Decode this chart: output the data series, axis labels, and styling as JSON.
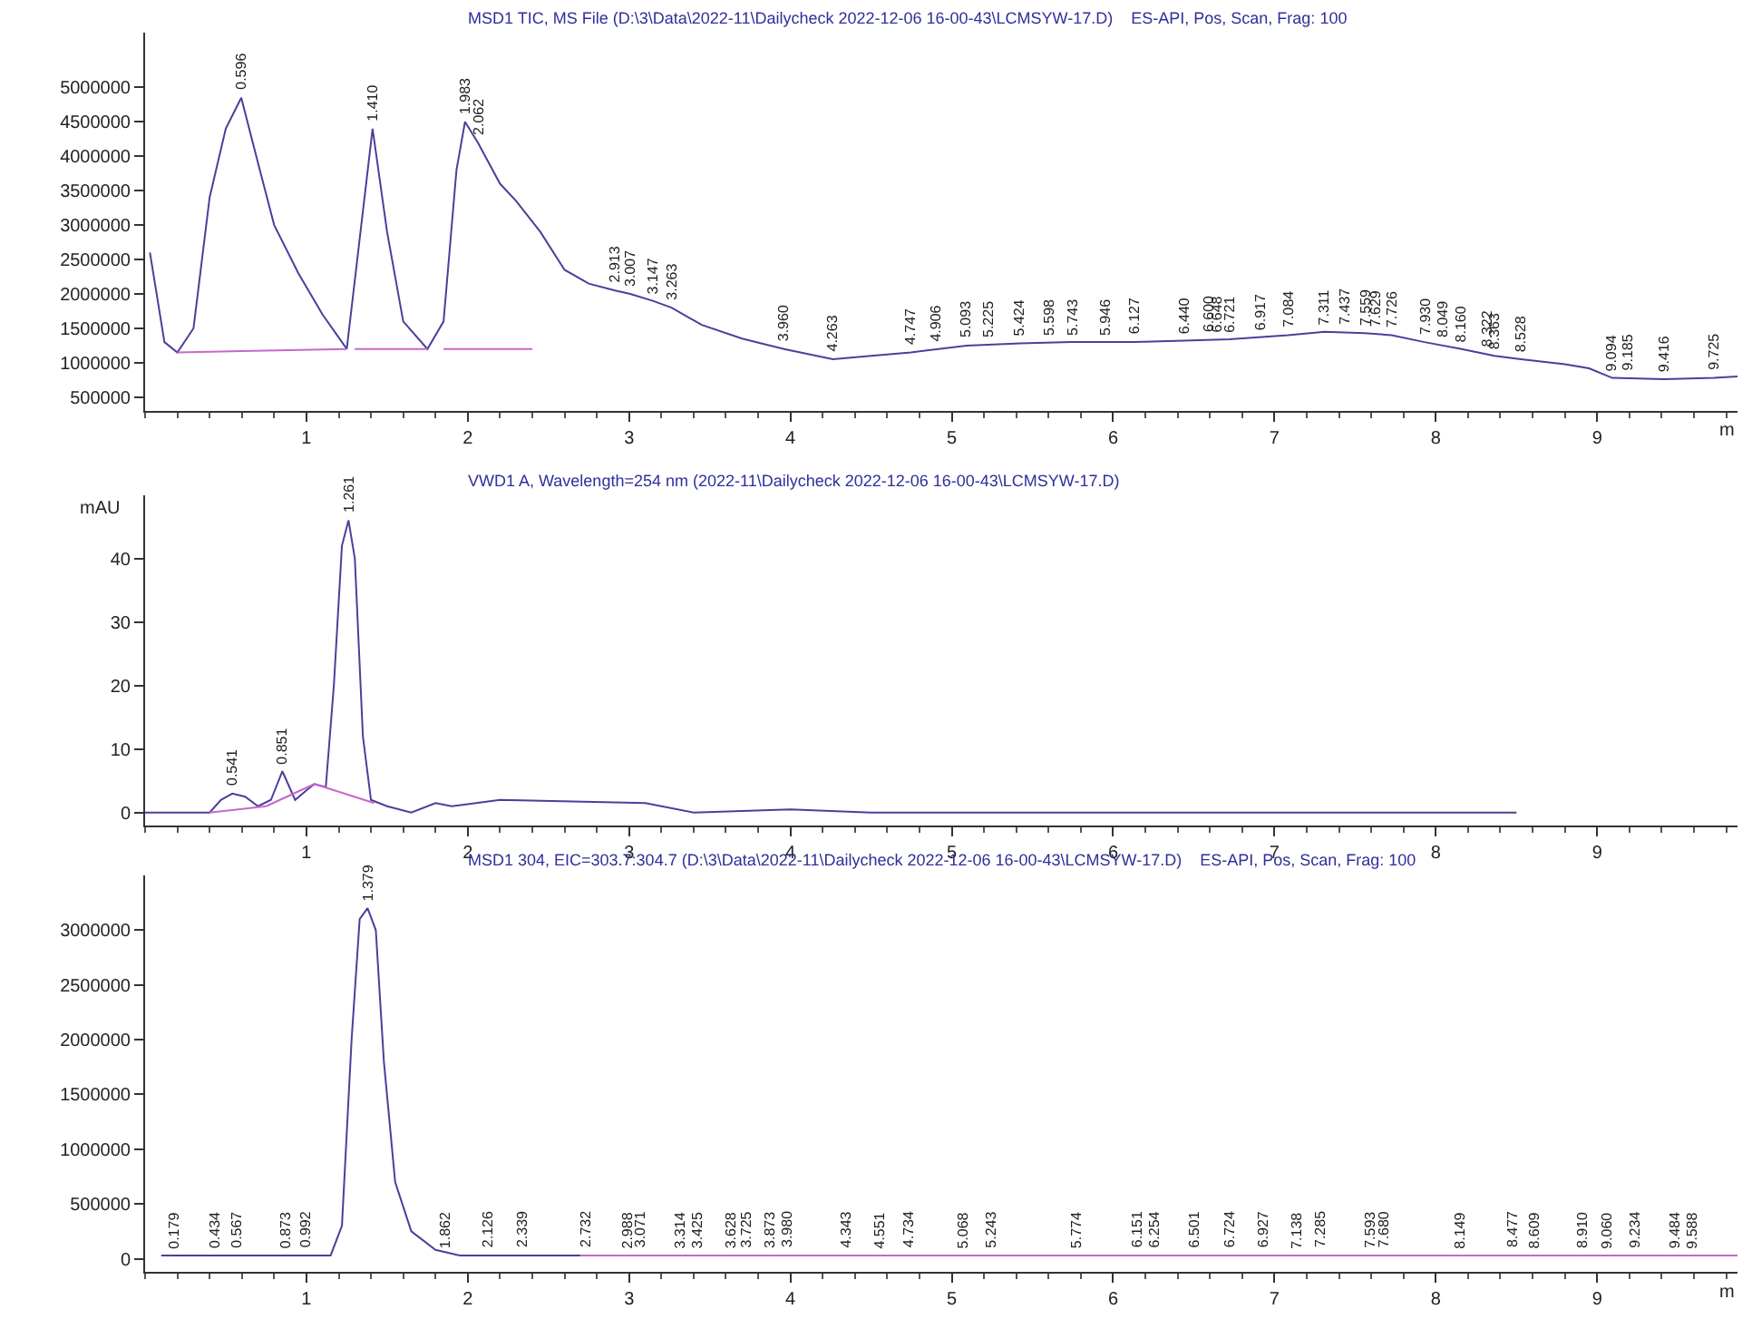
{
  "chart_data": [
    {
      "type": "line",
      "title": "MSD1 TIC, MS File (D:\\3\\Data\\2022-11\\Dailycheck 2022-12-06 16-00-43\\LCMSYW-17.D)    ES-API, Pos, Scan, Frag: 100",
      "xlabel": "m",
      "xlim": [
        0,
        9.87
      ],
      "xticks": [
        1,
        2,
        3,
        4,
        5,
        6,
        7,
        8,
        9
      ],
      "ylim": [
        300000,
        5800000
      ],
      "yticks": [
        500000,
        1000000,
        1500000,
        2000000,
        2500000,
        3000000,
        3500000,
        4000000,
        4500000,
        5000000
      ],
      "marker": "none",
      "line_style": "solid",
      "series": [
        {
          "color": "#4b3f9a",
          "x": [
            0.03,
            0.12,
            0.2,
            0.3,
            0.4,
            0.5,
            0.596,
            0.7,
            0.8,
            0.95,
            1.1,
            1.25,
            1.33,
            1.41,
            1.5,
            1.6,
            1.75,
            1.85,
            1.93,
            1.983,
            2.062,
            2.2,
            2.3,
            2.45,
            2.6,
            2.75,
            2.913,
            3.007,
            3.147,
            3.263,
            3.45,
            3.7,
            3.96,
            4.263,
            4.5,
            4.747,
            5.093,
            5.424,
            5.743,
            6.127,
            6.44,
            6.721,
            7.084,
            7.311,
            7.559,
            7.726,
            7.93,
            8.16,
            8.363,
            8.528,
            8.8,
            8.95,
            9.094,
            9.416,
            9.725,
            9.87
          ],
          "values": [
            2600000,
            1300000,
            1150000,
            1500000,
            3400000,
            4400000,
            4850000,
            3900000,
            3000000,
            2300000,
            1700000,
            1200000,
            2800000,
            4400000,
            2900000,
            1600000,
            1200000,
            1600000,
            3800000,
            4500000,
            4200000,
            3600000,
            3350000,
            2900000,
            2350000,
            2150000,
            2050000,
            2000000,
            1900000,
            1800000,
            1550000,
            1350000,
            1200000,
            1050000,
            1100000,
            1150000,
            1250000,
            1280000,
            1300000,
            1300000,
            1320000,
            1340000,
            1400000,
            1450000,
            1430000,
            1400000,
            1300000,
            1200000,
            1100000,
            1050000,
            980000,
            920000,
            780000,
            760000,
            780000,
            800000
          ]
        },
        {
          "color": "#c868c8",
          "x": [
            0.2,
            1.25,
            null,
            1.3,
            1.75,
            null,
            1.85,
            2.4
          ],
          "values": [
            1150000,
            1200000,
            null,
            1200000,
            1200000,
            null,
            1200000,
            1200000
          ]
        }
      ],
      "annotations": [
        {
          "text": "0.596",
          "x": 0.596,
          "y": 4850000
        },
        {
          "text": "1.410",
          "x": 1.41,
          "y": 4400000
        },
        {
          "text": "1.983",
          "x": 1.983,
          "y": 4500000
        },
        {
          "text": "2.062",
          "x": 2.062,
          "y": 4200000
        },
        {
          "text": "2.913",
          "x": 2.913,
          "y": 2050000
        },
        {
          "text": "3.007",
          "x": 3.007,
          "y": 2000000
        },
        {
          "text": "3.147",
          "x": 3.147,
          "y": 1900000
        },
        {
          "text": "3.263",
          "x": 3.263,
          "y": 1800000
        },
        {
          "text": "3.960",
          "x": 3.96,
          "y": 1200000
        },
        {
          "text": "4.263",
          "x": 4.263,
          "y": 1050000
        },
        {
          "text": "4.747",
          "x": 4.747,
          "y": 1150000
        },
        {
          "text": "4.906",
          "x": 4.906,
          "y": 1200000
        },
        {
          "text": "5.093",
          "x": 5.093,
          "y": 1250000
        },
        {
          "text": "5.225",
          "x": 5.225,
          "y": 1270000
        },
        {
          "text": "5.424",
          "x": 5.424,
          "y": 1280000
        },
        {
          "text": "5.598",
          "x": 5.598,
          "y": 1300000
        },
        {
          "text": "5.743",
          "x": 5.743,
          "y": 1300000
        },
        {
          "text": "5.946",
          "x": 5.946,
          "y": 1300000
        },
        {
          "text": "6.127",
          "x": 6.127,
          "y": 1300000
        },
        {
          "text": "6.440",
          "x": 6.44,
          "y": 1320000
        },
        {
          "text": "6.600",
          "x": 6.6,
          "y": 1330000
        },
        {
          "text": "6.648",
          "x": 6.648,
          "y": 1330000
        },
        {
          "text": "6.721",
          "x": 6.721,
          "y": 1340000
        },
        {
          "text": "6.917",
          "x": 6.917,
          "y": 1360000
        },
        {
          "text": "7.084",
          "x": 7.084,
          "y": 1400000
        },
        {
          "text": "7.311",
          "x": 7.311,
          "y": 1450000
        },
        {
          "text": "7.437",
          "x": 7.437,
          "y": 1450000
        },
        {
          "text": "7.559",
          "x": 7.559,
          "y": 1430000
        },
        {
          "text": "7.629",
          "x": 7.629,
          "y": 1420000
        },
        {
          "text": "7.726",
          "x": 7.726,
          "y": 1400000
        },
        {
          "text": "7.930",
          "x": 7.93,
          "y": 1300000
        },
        {
          "text": "8.049",
          "x": 8.049,
          "y": 1250000
        },
        {
          "text": "8.160",
          "x": 8.16,
          "y": 1200000
        },
        {
          "text": "8.322",
          "x": 8.322,
          "y": 1120000
        },
        {
          "text": "8.363",
          "x": 8.363,
          "y": 1100000
        },
        {
          "text": "8.528",
          "x": 8.528,
          "y": 1050000
        },
        {
          "text": "9.094",
          "x": 9.094,
          "y": 780000
        },
        {
          "text": "9.185",
          "x": 9.185,
          "y": 770000
        },
        {
          "text": "9.416",
          "x": 9.416,
          "y": 760000
        },
        {
          "text": "9.725",
          "x": 9.725,
          "y": 780000
        }
      ]
    },
    {
      "type": "line",
      "title": "VWD1 A, Wavelength=254 nm (2022-11\\Dailycheck 2022-12-06 16-00-43\\LCMSYW-17.D)",
      "ylabel": "mAU",
      "xlim": [
        0,
        9.87
      ],
      "xticks": [
        1,
        2,
        3,
        4,
        5,
        6,
        7,
        8,
        9
      ],
      "ylim": [
        -2,
        50
      ],
      "yticks": [
        0,
        10,
        20,
        30,
        40
      ],
      "marker": "none",
      "line_style": "solid",
      "series": [
        {
          "color": "#4b3f9a",
          "x": [
            0.0,
            0.4,
            0.47,
            0.541,
            0.62,
            0.7,
            0.78,
            0.851,
            0.93,
            1.0,
            1.05,
            1.12,
            1.17,
            1.22,
            1.261,
            1.3,
            1.35,
            1.4,
            1.5,
            1.65,
            1.8,
            1.9,
            2.2,
            3.1,
            3.4,
            4.0,
            4.5,
            8.5
          ],
          "values": [
            0,
            0,
            2,
            3,
            2.5,
            1,
            2,
            6.5,
            2,
            3.5,
            4.5,
            4,
            20,
            42,
            46,
            40,
            12,
            2,
            1,
            0,
            1.5,
            1,
            2,
            1.5,
            0,
            0.5,
            0,
            0
          ]
        },
        {
          "color": "#c868c8",
          "x": [
            0.4,
            0.75,
            null,
            0.75,
            1.05,
            null,
            1.05,
            1.42
          ],
          "values": [
            0,
            1,
            null,
            1,
            4.5,
            null,
            4.5,
            1.5
          ]
        }
      ],
      "annotations": [
        {
          "text": "0.541",
          "x": 0.541,
          "y": 3
        },
        {
          "text": "0.851",
          "x": 0.851,
          "y": 6.5
        },
        {
          "text": "1.261",
          "x": 1.261,
          "y": 46
        }
      ]
    },
    {
      "type": "line",
      "title": "MSD1 304, EIC=303.7:304.7 (D:\\3\\Data\\2022-11\\Dailycheck 2022-12-06 16-00-43\\LCMSYW-17.D)    ES-API, Pos, Scan, Frag: 100",
      "xlabel": "m",
      "xlim": [
        0,
        9.87
      ],
      "xticks": [
        1,
        2,
        3,
        4,
        5,
        6,
        7,
        8,
        9
      ],
      "ylim": [
        -120000,
        3500000
      ],
      "yticks": [
        0,
        500000,
        1000000,
        1500000,
        2000000,
        2500000,
        3000000
      ],
      "marker": "none",
      "line_style": "solid",
      "series": [
        {
          "color": "#4b3f9a",
          "x": [
            0.1,
            1.15,
            1.22,
            1.28,
            1.33,
            1.379,
            1.43,
            1.48,
            1.55,
            1.65,
            1.8,
            1.95,
            2.7
          ],
          "values": [
            30000,
            30000,
            300000,
            2000000,
            3100000,
            3200000,
            3000000,
            1800000,
            700000,
            250000,
            80000,
            30000,
            30000
          ]
        },
        {
          "color": "#c868c8",
          "x": [
            2.7,
            9.87
          ],
          "values": [
            30000,
            30000
          ]
        }
      ],
      "annotations": [
        {
          "text": "1.379",
          "x": 1.379,
          "y": 3200000
        },
        {
          "text": "0.179",
          "x": 0.179,
          "y": 30000
        },
        {
          "text": "0.434",
          "x": 0.434,
          "y": 30000
        },
        {
          "text": "0.567",
          "x": 0.567,
          "y": 30000
        },
        {
          "text": "0.873",
          "x": 0.873,
          "y": 30000
        },
        {
          "text": "0.992",
          "x": 0.992,
          "y": 30000
        },
        {
          "text": "1.862",
          "x": 1.862,
          "y": 30000
        },
        {
          "text": "2.126",
          "x": 2.126,
          "y": 30000
        },
        {
          "text": "2.339",
          "x": 2.339,
          "y": 30000
        },
        {
          "text": "2.732",
          "x": 2.732,
          "y": 30000
        },
        {
          "text": "2.988",
          "x": 2.988,
          "y": 30000
        },
        {
          "text": "3.071",
          "x": 3.071,
          "y": 30000
        },
        {
          "text": "3.314",
          "x": 3.314,
          "y": 30000
        },
        {
          "text": "3.425",
          "x": 3.425,
          "y": 30000
        },
        {
          "text": "3.628",
          "x": 3.628,
          "y": 30000
        },
        {
          "text": "3.725",
          "x": 3.725,
          "y": 30000
        },
        {
          "text": "3.873",
          "x": 3.873,
          "y": 30000
        },
        {
          "text": "3.980",
          "x": 3.98,
          "y": 30000
        },
        {
          "text": "4.343",
          "x": 4.343,
          "y": 30000
        },
        {
          "text": "4.551",
          "x": 4.551,
          "y": 30000
        },
        {
          "text": "4.734",
          "x": 4.734,
          "y": 30000
        },
        {
          "text": "5.068",
          "x": 5.068,
          "y": 30000
        },
        {
          "text": "5.243",
          "x": 5.243,
          "y": 30000
        },
        {
          "text": "5.774",
          "x": 5.774,
          "y": 30000
        },
        {
          "text": "6.151",
          "x": 6.151,
          "y": 30000
        },
        {
          "text": "6.254",
          "x": 6.254,
          "y": 30000
        },
        {
          "text": "6.501",
          "x": 6.501,
          "y": 30000
        },
        {
          "text": "6.724",
          "x": 6.724,
          "y": 30000
        },
        {
          "text": "6.927",
          "x": 6.927,
          "y": 30000
        },
        {
          "text": "7.138",
          "x": 7.138,
          "y": 30000
        },
        {
          "text": "7.285",
          "x": 7.285,
          "y": 30000
        },
        {
          "text": "7.593",
          "x": 7.593,
          "y": 30000
        },
        {
          "text": "7.680",
          "x": 7.68,
          "y": 30000
        },
        {
          "text": "8.149",
          "x": 8.149,
          "y": 30000
        },
        {
          "text": "8.477",
          "x": 8.477,
          "y": 30000
        },
        {
          "text": "8.609",
          "x": 8.609,
          "y": 30000
        },
        {
          "text": "8.910",
          "x": 8.91,
          "y": 30000
        },
        {
          "text": "9.060",
          "x": 9.06,
          "y": 30000
        },
        {
          "text": "9.234",
          "x": 9.234,
          "y": 30000
        },
        {
          "text": "9.484",
          "x": 9.484,
          "y": 30000
        },
        {
          "text": "9.588",
          "x": 9.588,
          "y": 30000
        }
      ]
    }
  ]
}
